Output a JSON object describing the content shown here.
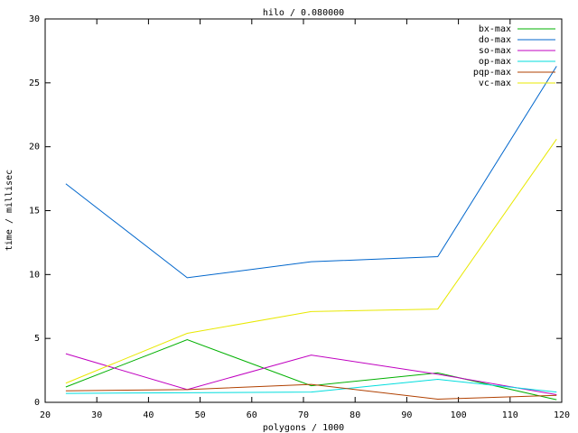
{
  "chart_data": {
    "type": "line",
    "title": "hilo / 0.080000",
    "x_label": "polygons / 1000",
    "y_label": "time / millisec",
    "x": [
      24,
      47.5,
      71.5,
      96,
      119
    ],
    "series": [
      {
        "name": "bx-max",
        "color": "#00b000",
        "values": [
          1.2,
          4.9,
          1.3,
          2.3,
          0.2
        ]
      },
      {
        "name": "do-max",
        "color": "#0066cc",
        "values": [
          17.1,
          9.75,
          11.0,
          11.4,
          26.3
        ]
      },
      {
        "name": "so-max",
        "color": "#c000c0",
        "values": [
          3.8,
          1.0,
          3.7,
          2.2,
          0.6
        ]
      },
      {
        "name": "op-max",
        "color": "#00dddd",
        "values": [
          0.7,
          0.75,
          0.8,
          1.8,
          0.8
        ]
      },
      {
        "name": "pqp-max",
        "color": "#b04000",
        "values": [
          0.9,
          1.0,
          1.4,
          0.25,
          0.55
        ]
      },
      {
        "name": "vc-max",
        "color": "#e8e800",
        "values": [
          1.5,
          5.4,
          7.1,
          7.3,
          20.6
        ]
      }
    ],
    "xlim": [
      20,
      120
    ],
    "xticks": [
      20,
      30,
      40,
      50,
      60,
      70,
      80,
      90,
      100,
      110,
      120
    ],
    "ylim": [
      0,
      30
    ],
    "yticks": [
      0,
      5,
      10,
      15,
      20,
      25,
      30
    ],
    "legend": "top-right"
  }
}
